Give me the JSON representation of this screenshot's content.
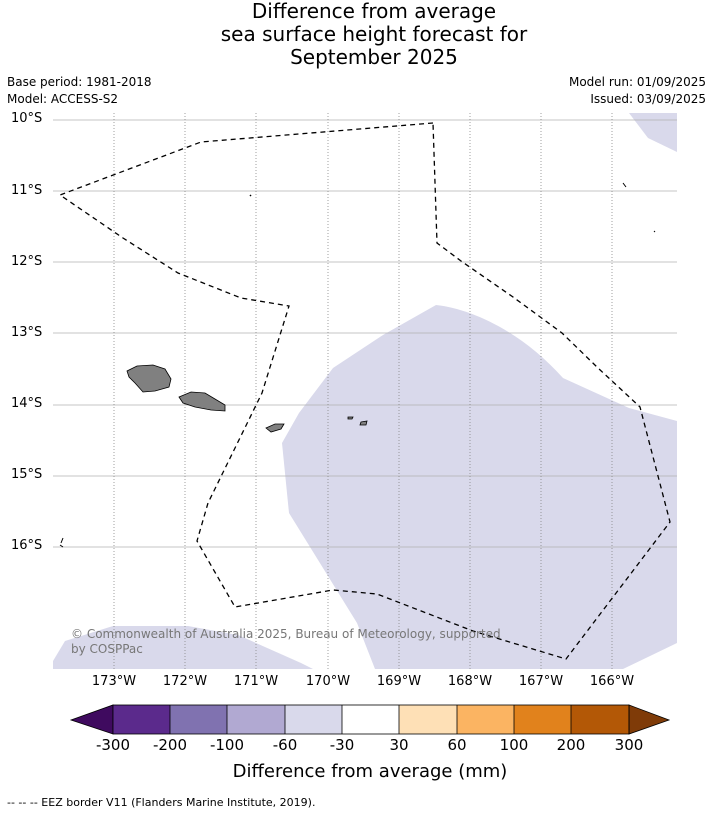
{
  "title": {
    "line1": "Difference from average",
    "line2": "sea surface height forecast for",
    "line3": "September 2025"
  },
  "meta": {
    "base_period": "Base period: 1981-2018",
    "model": "Model: ACCESS-S2",
    "model_run": "Model run: 01/09/2025",
    "issued": "Issued: 03/09/2025"
  },
  "lat_labels": [
    "10°S",
    "11°S",
    "12°S",
    "13°S",
    "14°S",
    "15°S",
    "16°S"
  ],
  "lon_labels": [
    "173°W",
    "172°W",
    "171°W",
    "170°W",
    "169°W",
    "168°W",
    "167°W",
    "166°W"
  ],
  "copyright": "© Commonwealth of Australia 2025, Bureau of Meteorology, supported by COSPPac",
  "colorbar": {
    "ticks": [
      "-300",
      "-200",
      "-100",
      "-60",
      "-30",
      "30",
      "60",
      "100",
      "200",
      "300"
    ],
    "colors": [
      "#3f0a5f",
      "#5b2a8c",
      "#8072b0",
      "#b1a9d2",
      "#d9d9eb",
      "#ffffff",
      "#fee0b6",
      "#fbb462",
      "#e1821c",
      "#b35806",
      "#7f3b08"
    ],
    "title": "Difference from average (mm)"
  },
  "footnote": "--  --  -- EEZ border V11 (Flanders Marine Institute, 2019).",
  "map_colors": {
    "anomaly_fill": "#d9d9eb",
    "land": "#808080",
    "gridline": "#b0b0b0"
  }
}
